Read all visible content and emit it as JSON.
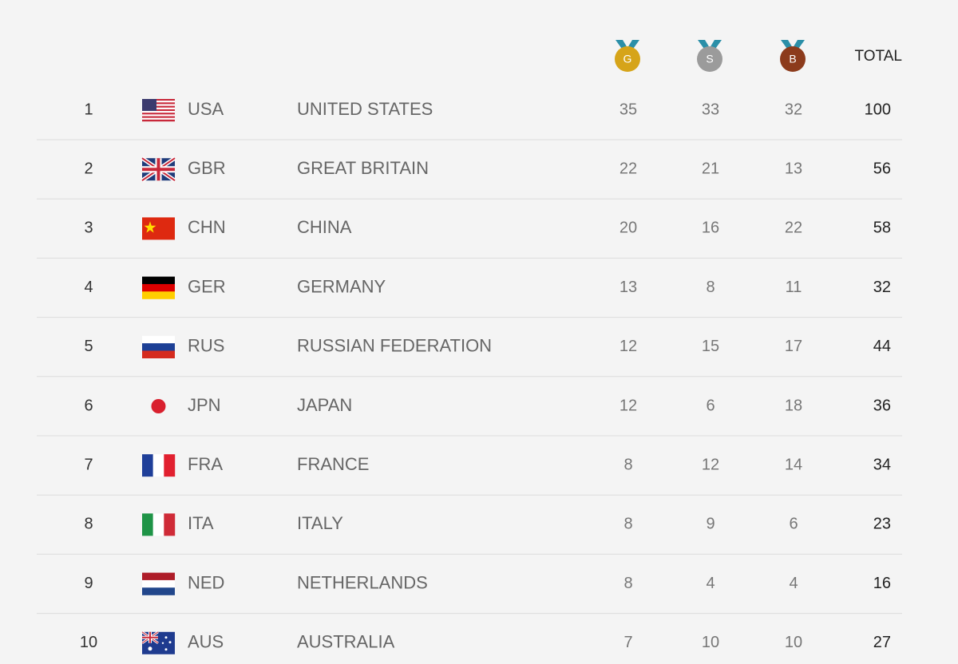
{
  "header": {
    "medals": [
      "G",
      "S",
      "B"
    ],
    "total": "TOTAL"
  },
  "table": {
    "rows": [
      [
        1,
        "USA",
        "UNITED STATES",
        35,
        33,
        32,
        100
      ],
      [
        2,
        "GBR",
        "GREAT BRITAIN",
        22,
        21,
        13,
        56
      ],
      [
        3,
        "CHN",
        "CHINA",
        20,
        16,
        22,
        58
      ],
      [
        4,
        "GER",
        "GERMANY",
        13,
        8,
        11,
        32
      ],
      [
        5,
        "RUS",
        "RUSSIAN FEDERATION",
        12,
        15,
        17,
        44
      ],
      [
        6,
        "JPN",
        "JAPAN",
        12,
        6,
        18,
        36
      ],
      [
        7,
        "FRA",
        "FRANCE",
        8,
        12,
        14,
        34
      ],
      [
        8,
        "ITA",
        "ITALY",
        8,
        9,
        6,
        23
      ],
      [
        9,
        "NED",
        "NETHERLANDS",
        8,
        4,
        4,
        16
      ],
      [
        10,
        "AUS",
        "AUSTRALIA",
        7,
        10,
        10,
        27
      ]
    ]
  }
}
